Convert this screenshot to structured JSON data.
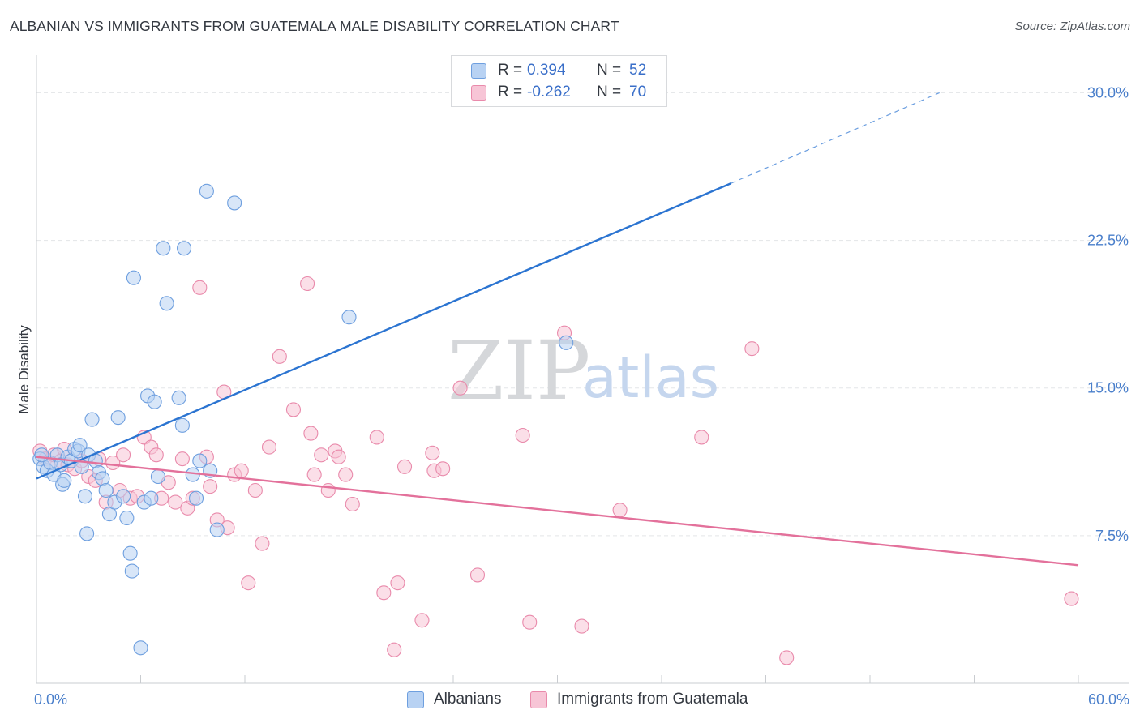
{
  "title": "ALBANIAN VS IMMIGRANTS FROM GUATEMALA MALE DISABILITY CORRELATION CHART",
  "source": "Source: ZipAtlas.com",
  "watermark": {
    "zip": "ZIP",
    "atlas": "atlas"
  },
  "colors": {
    "blue_fill": "#b8d2f3",
    "blue_stroke": "#6e9fdf",
    "blue_line": "#2b74d1",
    "pink_fill": "#f7c5d6",
    "pink_stroke": "#e98aab",
    "pink_line": "#e3719b",
    "grid": "#e3e5e8",
    "axis_text": "#4a7fcb"
  },
  "legend": {
    "rows": [
      {
        "r_label": "R =",
        "r_value": "0.394",
        "n_label": "N =",
        "n_value": "52"
      },
      {
        "r_label": "R =",
        "r_value": "-0.262",
        "n_label": "N =",
        "n_value": "70"
      }
    ]
  },
  "bottom_legend": [
    "Albanians",
    "Immigrants from Guatemala"
  ],
  "chart_data": {
    "type": "scatter",
    "title": "ALBANIAN VS IMMIGRANTS FROM GUATEMALA MALE DISABILITY CORRELATION CHART",
    "xlabel": "",
    "ylabel": "Male Disability",
    "xlim": [
      0,
      60
    ],
    "ylim": [
      0,
      31.5
    ],
    "x_tick_labels": [
      "0.0%",
      "60.0%"
    ],
    "y_ticks": [
      7.5,
      15.0,
      22.5,
      30.0
    ],
    "y_tick_labels": [
      "7.5%",
      "15.0%",
      "22.5%",
      "30.0%"
    ],
    "grid": true,
    "legend_position": "top-center",
    "series": [
      {
        "name": "Albanians",
        "color": "#6e9fdf",
        "r": 0.394,
        "n": 52,
        "trend": {
          "x0": 0,
          "y0": 10.4,
          "x1": 40,
          "y1": 25.4,
          "dashed_to": {
            "x": 52,
            "y": 30.0
          }
        },
        "points": [
          [
            0.2,
            11.4
          ],
          [
            0.4,
            11.0
          ],
          [
            0.6,
            10.8
          ],
          [
            0.8,
            11.2
          ],
          [
            1.0,
            10.6
          ],
          [
            1.2,
            11.6
          ],
          [
            1.4,
            11.1
          ],
          [
            1.5,
            10.1
          ],
          [
            1.6,
            10.3
          ],
          [
            1.8,
            11.5
          ],
          [
            2.0,
            11.3
          ],
          [
            2.2,
            11.9
          ],
          [
            2.4,
            11.8
          ],
          [
            2.5,
            12.1
          ],
          [
            2.6,
            11.0
          ],
          [
            2.8,
            9.5
          ],
          [
            3.0,
            11.6
          ],
          [
            3.2,
            13.4
          ],
          [
            3.4,
            11.3
          ],
          [
            3.6,
            10.7
          ],
          [
            3.8,
            10.4
          ],
          [
            4.0,
            9.8
          ],
          [
            4.2,
            8.6
          ],
          [
            4.5,
            9.2
          ],
          [
            4.7,
            13.5
          ],
          [
            5.0,
            9.5
          ],
          [
            5.2,
            8.4
          ],
          [
            5.4,
            6.6
          ],
          [
            5.5,
            5.7
          ],
          [
            5.6,
            20.6
          ],
          [
            6.0,
            1.8
          ],
          [
            6.2,
            9.2
          ],
          [
            6.4,
            14.6
          ],
          [
            6.6,
            9.4
          ],
          [
            6.8,
            14.3
          ],
          [
            7.0,
            10.5
          ],
          [
            7.3,
            22.1
          ],
          [
            7.5,
            19.3
          ],
          [
            8.2,
            14.5
          ],
          [
            8.4,
            13.1
          ],
          [
            8.5,
            22.1
          ],
          [
            9.0,
            10.6
          ],
          [
            9.2,
            9.4
          ],
          [
            9.4,
            11.3
          ],
          [
            9.8,
            25.0
          ],
          [
            10.0,
            10.8
          ],
          [
            10.4,
            7.8
          ],
          [
            11.4,
            24.4
          ],
          [
            18.0,
            18.6
          ],
          [
            30.5,
            17.3
          ],
          [
            2.9,
            7.6
          ],
          [
            0.3,
            11.6
          ]
        ]
      },
      {
        "name": "Immigrants from Guatemala",
        "color": "#e98aab",
        "r": -0.262,
        "n": 70,
        "trend": {
          "x0": 0,
          "y0": 11.5,
          "x1": 60,
          "y1": 6.0
        },
        "points": [
          [
            0.2,
            11.8
          ],
          [
            0.5,
            11.4
          ],
          [
            0.8,
            11.2
          ],
          [
            1.0,
            11.6
          ],
          [
            1.4,
            11.3
          ],
          [
            1.8,
            11.1
          ],
          [
            2.2,
            10.9
          ],
          [
            2.6,
            11.3
          ],
          [
            3.0,
            10.5
          ],
          [
            3.4,
            10.3
          ],
          [
            3.6,
            11.4
          ],
          [
            4.0,
            9.2
          ],
          [
            4.4,
            11.2
          ],
          [
            4.8,
            9.8
          ],
          [
            5.0,
            11.6
          ],
          [
            5.4,
            9.4
          ],
          [
            5.8,
            9.5
          ],
          [
            6.2,
            12.5
          ],
          [
            6.6,
            12.0
          ],
          [
            6.9,
            11.6
          ],
          [
            7.2,
            9.4
          ],
          [
            7.6,
            10.2
          ],
          [
            8.0,
            9.2
          ],
          [
            8.4,
            11.4
          ],
          [
            8.7,
            8.9
          ],
          [
            9.0,
            9.4
          ],
          [
            9.4,
            20.1
          ],
          [
            9.8,
            11.5
          ],
          [
            10.0,
            10.0
          ],
          [
            10.4,
            8.3
          ],
          [
            10.8,
            14.8
          ],
          [
            11.0,
            7.9
          ],
          [
            11.4,
            10.6
          ],
          [
            11.8,
            10.8
          ],
          [
            12.2,
            5.1
          ],
          [
            12.6,
            9.8
          ],
          [
            13.0,
            7.1
          ],
          [
            13.4,
            12.0
          ],
          [
            14.0,
            16.6
          ],
          [
            14.8,
            13.9
          ],
          [
            15.6,
            20.3
          ],
          [
            15.8,
            12.7
          ],
          [
            16.0,
            10.6
          ],
          [
            16.4,
            11.6
          ],
          [
            16.8,
            9.8
          ],
          [
            17.2,
            11.8
          ],
          [
            17.4,
            11.5
          ],
          [
            17.8,
            10.6
          ],
          [
            18.2,
            9.1
          ],
          [
            19.6,
            12.5
          ],
          [
            20.0,
            4.6
          ],
          [
            20.6,
            1.7
          ],
          [
            20.8,
            5.1
          ],
          [
            21.2,
            11.0
          ],
          [
            22.2,
            3.2
          ],
          [
            22.8,
            11.7
          ],
          [
            22.9,
            10.8
          ],
          [
            23.4,
            10.9
          ],
          [
            24.4,
            15.0
          ],
          [
            25.4,
            5.5
          ],
          [
            28.0,
            12.6
          ],
          [
            28.4,
            3.1
          ],
          [
            30.4,
            17.8
          ],
          [
            31.4,
            2.9
          ],
          [
            33.6,
            8.8
          ],
          [
            38.3,
            12.5
          ],
          [
            41.2,
            17.0
          ],
          [
            43.2,
            1.3
          ],
          [
            59.6,
            4.3
          ],
          [
            1.6,
            11.9
          ]
        ]
      }
    ]
  }
}
